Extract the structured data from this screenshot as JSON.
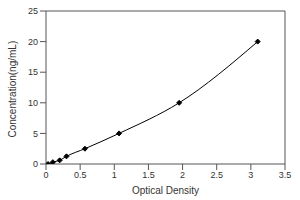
{
  "chart_data": {
    "type": "line",
    "x_label": "Optical Density",
    "y_label": "Concentration(ng/mL)",
    "x": [
      0.03,
      0.1,
      0.2,
      0.3,
      0.57,
      1.07,
      1.95,
      3.1
    ],
    "values": [
      0,
      0.3,
      0.6,
      1.25,
      2.5,
      5,
      10,
      20
    ],
    "color": "#000000",
    "marker": "diamond",
    "line_style": "solid",
    "xlim": [
      0,
      3.5
    ],
    "xticks": [
      0,
      0.5,
      1,
      1.5,
      2,
      2.5,
      3,
      3.5
    ],
    "ylim": [
      0,
      25
    ],
    "yticks": [
      0,
      5,
      10,
      15,
      20,
      25
    ],
    "grid": false
  }
}
